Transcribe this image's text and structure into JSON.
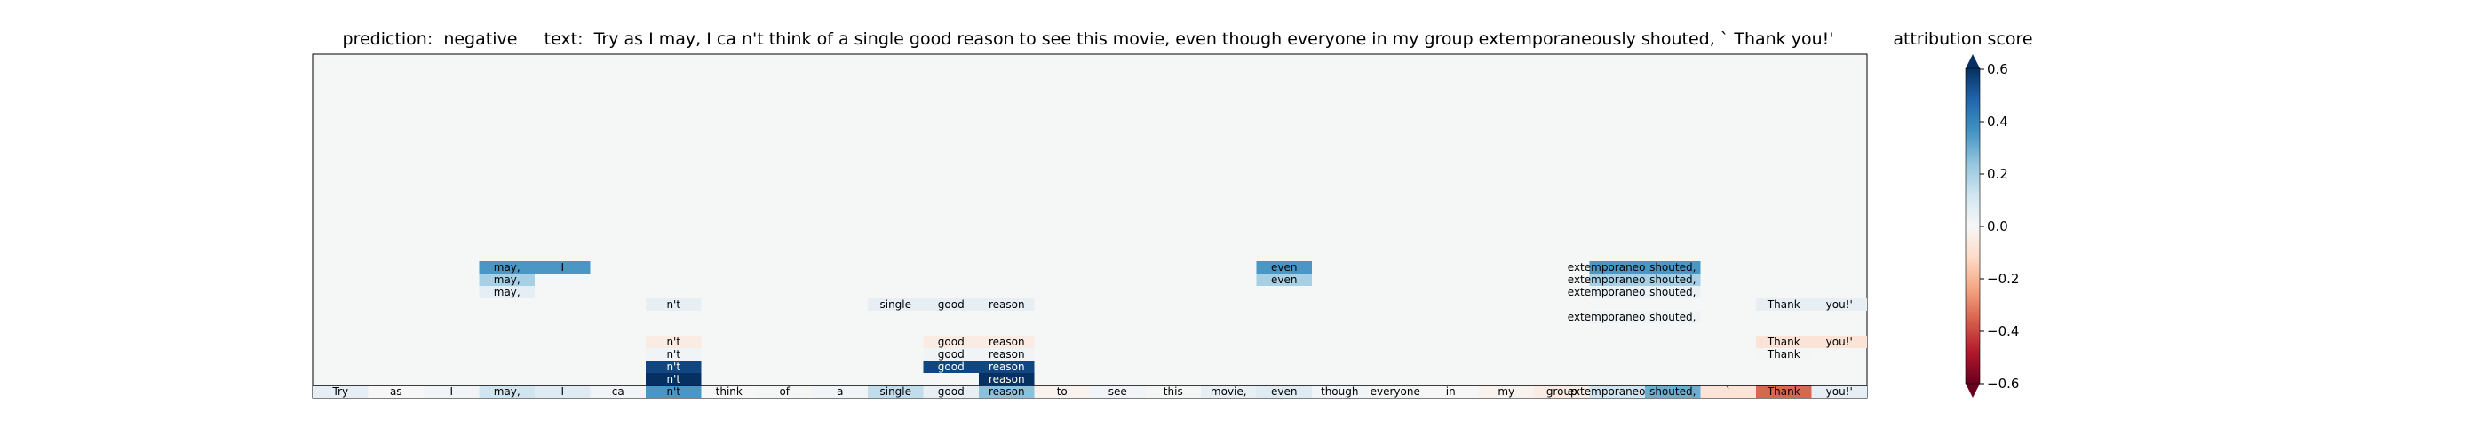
{
  "figure": {
    "title": "prediction:  negative     text:  Try as I may, I ca n't think of a single good reason to see this movie, even though everyone in my group extemporaneously shouted, ` Thank you!'",
    "colorbar_label": "attribution score"
  },
  "chart_data": {
    "type": "heatmap",
    "title": "prediction:  negative     text:  Try as I may, I ca n't think of a single good reason to see this movie, even though everyone in my group extemporaneously shouted, ` Thank you!'",
    "colormap": "RdBu",
    "colorbar": {
      "label": "attribution score",
      "range": [
        -0.6,
        0.6
      ],
      "ticks": [
        -0.6,
        -0.4,
        -0.2,
        0.0,
        0.2,
        0.4,
        0.6
      ],
      "tick_labels": [
        "−0.6",
        "−0.4",
        "−0.2",
        "0.0",
        "0.2",
        "0.4",
        "0.6"
      ],
      "extend": "both"
    },
    "tokens": [
      "Try",
      "as",
      "I",
      "may,",
      "I",
      "ca",
      "n't",
      "think",
      "of",
      "a",
      "single",
      "good",
      "reason",
      "to",
      "see",
      "this",
      "movie,",
      "even",
      "though",
      "everyone",
      "in",
      "my",
      "group",
      "extemporaneously",
      "shouted,",
      "`",
      "Thank",
      "you!'"
    ],
    "bottom_row": [
      0.06,
      0.0,
      0.02,
      0.12,
      0.08,
      0.02,
      0.35,
      0.0,
      0.01,
      0.02,
      0.15,
      0.05,
      0.25,
      -0.02,
      0.02,
      0.01,
      0.05,
      0.08,
      0.02,
      0.01,
      0.0,
      -0.02,
      -0.05,
      0.12,
      0.3,
      -0.08,
      -0.35,
      0.06
    ],
    "tree_cells": [
      {
        "row": 1,
        "start": 6,
        "end": 6,
        "label": "n't",
        "value": 0.6
      },
      {
        "row": 1,
        "start": 12,
        "end": 12,
        "label": "reason",
        "value": 0.6
      },
      {
        "row": 2,
        "start": 6,
        "end": 6,
        "label": "n't",
        "value": 0.55
      },
      {
        "row": 2,
        "start": 11,
        "end": 11,
        "label": "good",
        "value": 0.55
      },
      {
        "row": 2,
        "start": 12,
        "end": 12,
        "label": "reason",
        "value": 0.55
      },
      {
        "row": 3,
        "start": 6,
        "end": 6,
        "label": "n't",
        "value": 0.02
      },
      {
        "row": 3,
        "start": 11,
        "end": 11,
        "label": "good",
        "value": 0.02
      },
      {
        "row": 3,
        "start": 12,
        "end": 12,
        "label": "reason",
        "value": 0.02
      },
      {
        "row": 3,
        "start": 26,
        "end": 26,
        "label": "Thank",
        "value": 0.01
      },
      {
        "row": 4,
        "start": 6,
        "end": 6,
        "label": "n't",
        "value": -0.05
      },
      {
        "row": 4,
        "start": 11,
        "end": 11,
        "label": "good",
        "value": -0.05
      },
      {
        "row": 4,
        "start": 12,
        "end": 12,
        "label": "reason",
        "value": -0.05
      },
      {
        "row": 4,
        "start": 26,
        "end": 26,
        "label": "Thank",
        "value": -0.08
      },
      {
        "row": 4,
        "start": 27,
        "end": 27,
        "label": "you!'",
        "value": -0.08
      },
      {
        "row": 6,
        "start": 23,
        "end": 23,
        "label": "extemporaneously",
        "value": 0.03
      },
      {
        "row": 6,
        "start": 24,
        "end": 24,
        "label": "shouted,",
        "value": 0.03
      },
      {
        "row": 7,
        "start": 6,
        "end": 6,
        "label": "n't",
        "value": 0.05
      },
      {
        "row": 7,
        "start": 10,
        "end": 10,
        "label": "single",
        "value": 0.05
      },
      {
        "row": 7,
        "start": 11,
        "end": 11,
        "label": "good",
        "value": 0.05
      },
      {
        "row": 7,
        "start": 12,
        "end": 12,
        "label": "reason",
        "value": 0.05
      },
      {
        "row": 7,
        "start": 26,
        "end": 26,
        "label": "Thank",
        "value": 0.05
      },
      {
        "row": 7,
        "start": 27,
        "end": 27,
        "label": "you!'",
        "value": 0.05
      },
      {
        "row": 8,
        "start": 3,
        "end": 3,
        "label": "may,",
        "value": 0.06
      },
      {
        "row": 8,
        "start": 23,
        "end": 23,
        "label": "extemporaneously",
        "value": 0.04
      },
      {
        "row": 8,
        "start": 24,
        "end": 24,
        "label": "shouted,",
        "value": 0.04
      },
      {
        "row": 9,
        "start": 3,
        "end": 3,
        "label": "may,",
        "value": 0.2
      },
      {
        "row": 9,
        "start": 17,
        "end": 17,
        "label": "even",
        "value": 0.2
      },
      {
        "row": 9,
        "start": 23,
        "end": 23,
        "label": "extemporaneously",
        "value": 0.2
      },
      {
        "row": 9,
        "start": 24,
        "end": 24,
        "label": "shouted,",
        "value": 0.2
      },
      {
        "row": 10,
        "start": 3,
        "end": 3,
        "label": "may,",
        "value": 0.35
      },
      {
        "row": 10,
        "start": 4,
        "end": 4,
        "label": "I",
        "value": 0.35
      },
      {
        "row": 10,
        "start": 17,
        "end": 17,
        "label": "even",
        "value": 0.35
      },
      {
        "row": 10,
        "start": 23,
        "end": 23,
        "label": "extemporaneously",
        "value": 0.35
      },
      {
        "row": 10,
        "start": 24,
        "end": 24,
        "label": "shouted,",
        "value": 0.35
      }
    ]
  }
}
